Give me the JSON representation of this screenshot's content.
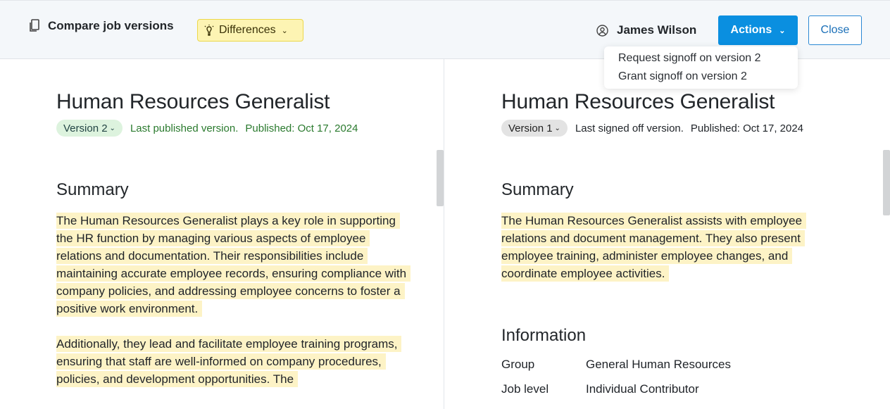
{
  "header": {
    "title": "Compare job versions",
    "diff_label": "Differences",
    "user": "James Wilson",
    "actions_label": "Actions",
    "close_label": "Close"
  },
  "actions_menu": [
    "Request signoff on version 2",
    "Grant signoff on version 2"
  ],
  "left": {
    "title": "Human Resources Generalist",
    "version": "Version 2",
    "status": "Last published version.",
    "published": "Published: Oct 17, 2024",
    "summary_heading": "Summary",
    "paragraphs": [
      "The Human Resources Generalist plays a key role in supporting the HR function by managing various aspects of employee relations and documentation. Their responsibilities include maintaining accurate employee records, ensuring compliance with company policies, and addressing employee concerns to foster a positive work environment.",
      "Additionally, they lead and facilitate employee training programs, ensuring that staff are well-informed on company procedures, policies, and development opportunities. The"
    ]
  },
  "right": {
    "title": "Human Resources Generalist",
    "version": "Version 1",
    "status": "Last signed off version.",
    "published": "Published: Oct 17, 2024",
    "summary_heading": "Summary",
    "paragraphs": [
      "The Human Resources Generalist assists with employee relations and document management. They also present employee training, administer employee changes, and coordinate employee activities."
    ],
    "info_heading": "Information",
    "info": [
      {
        "label": "Group",
        "value": "General Human Resources"
      },
      {
        "label": "Job level",
        "value": "Individual Contributor"
      }
    ]
  },
  "colors": {
    "highlight": "#fdf3c6",
    "primary": "#0a8fe0",
    "differences_bg": "#fdf4b3"
  }
}
